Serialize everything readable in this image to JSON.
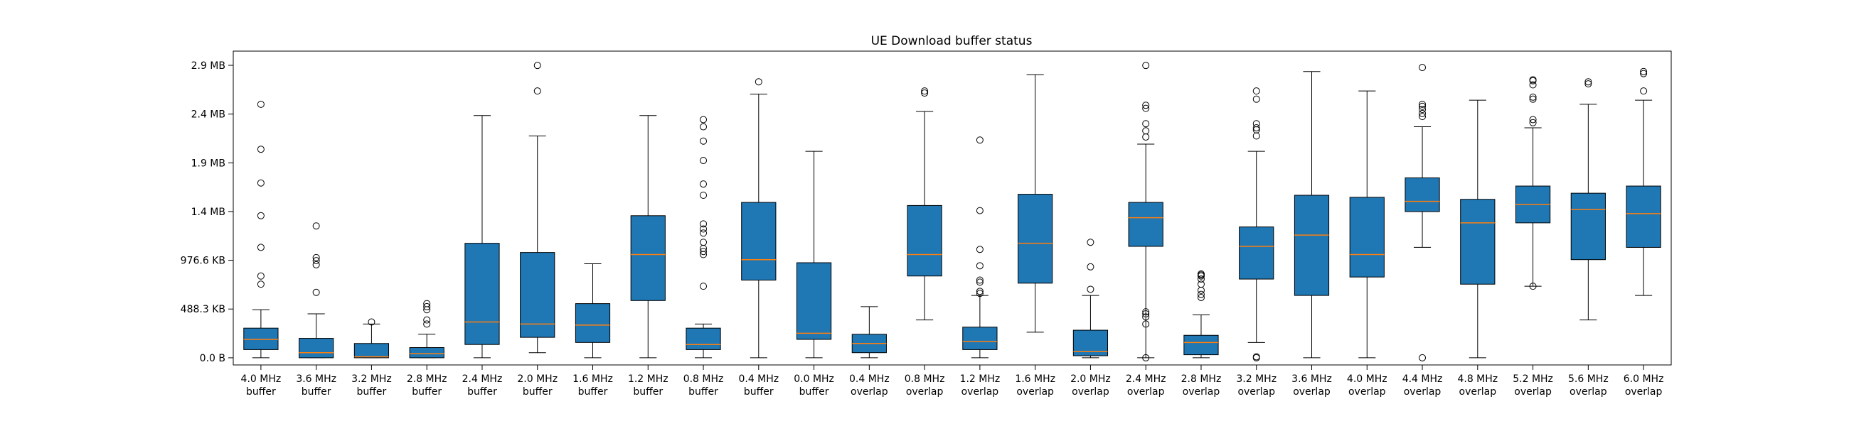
{
  "chart_data": {
    "type": "box",
    "title": "UE Download buffer status",
    "xlabel": "",
    "ylabel": "",
    "y_tick_labels": [
      "0.0 B",
      "488.3 KB",
      "976.6 KB",
      "1.4 MB",
      "1.9 MB",
      "2.4 MB",
      "2.9 MB"
    ],
    "y_tick_values_MB": [
      0.0,
      0.477,
      0.954,
      1.431,
      1.907,
      2.384,
      2.861
    ],
    "ylim_MB": [
      -0.07,
      3.0
    ],
    "y_unit": "MB",
    "grid": false,
    "box_color": "#1f77b4",
    "median_color": "#ff7f0e",
    "categories": [
      [
        "4.0 MHz",
        "buffer"
      ],
      [
        "3.6 MHz",
        "buffer"
      ],
      [
        "3.2 MHz",
        "buffer"
      ],
      [
        "2.8 MHz",
        "buffer"
      ],
      [
        "2.4 MHz",
        "buffer"
      ],
      [
        "2.0 MHz",
        "buffer"
      ],
      [
        "1.6 MHz",
        "buffer"
      ],
      [
        "1.2 MHz",
        "buffer"
      ],
      [
        "0.8 MHz",
        "buffer"
      ],
      [
        "0.4 MHz",
        "buffer"
      ],
      [
        "0.0 MHz",
        "buffer"
      ],
      [
        "0.4 MHz",
        "overlap"
      ],
      [
        "0.8 MHz",
        "overlap"
      ],
      [
        "1.2 MHz",
        "overlap"
      ],
      [
        "1.6 MHz",
        "overlap"
      ],
      [
        "2.0 MHz",
        "overlap"
      ],
      [
        "2.4 MHz",
        "overlap"
      ],
      [
        "2.8 MHz",
        "overlap"
      ],
      [
        "3.2 MHz",
        "overlap"
      ],
      [
        "3.6 MHz",
        "overlap"
      ],
      [
        "4.0 MHz",
        "overlap"
      ],
      [
        "4.4 MHz",
        "overlap"
      ],
      [
        "4.8 MHz",
        "overlap"
      ],
      [
        "5.2 MHz",
        "overlap"
      ],
      [
        "5.6 MHz",
        "overlap"
      ],
      [
        "6.0 MHz",
        "overlap"
      ]
    ],
    "boxes": [
      {
        "whislo": 0.0,
        "q1": 0.08,
        "med": 0.18,
        "q3": 0.29,
        "whishi": 0.47,
        "fliers": [
          2.48,
          2.04,
          1.71,
          1.39,
          1.08,
          0.8,
          0.72
        ]
      },
      {
        "whislo": 0.0,
        "q1": 0.0,
        "med": 0.05,
        "q3": 0.19,
        "whishi": 0.43,
        "fliers": [
          1.29,
          0.98,
          0.95,
          0.91,
          0.64
        ]
      },
      {
        "whislo": 0.0,
        "q1": 0.0,
        "med": 0.01,
        "q3": 0.14,
        "whishi": 0.33,
        "fliers": [
          0.35
        ]
      },
      {
        "whislo": 0.0,
        "q1": 0.0,
        "med": 0.04,
        "q3": 0.1,
        "whishi": 0.23,
        "fliers": [
          0.53,
          0.5,
          0.47,
          0.37,
          0.33
        ]
      },
      {
        "whislo": 0.0,
        "q1": 0.13,
        "med": 0.35,
        "q3": 1.12,
        "whishi": 2.37,
        "fliers": []
      },
      {
        "whislo": 0.05,
        "q1": 0.2,
        "med": 0.33,
        "q3": 1.03,
        "whishi": 2.17,
        "fliers": [
          2.86,
          2.61
        ]
      },
      {
        "whislo": 0.0,
        "q1": 0.15,
        "med": 0.32,
        "q3": 0.53,
        "whishi": 0.92,
        "fliers": []
      },
      {
        "whislo": 0.0,
        "q1": 0.56,
        "med": 1.01,
        "q3": 1.39,
        "whishi": 2.37,
        "fliers": []
      },
      {
        "whislo": 0.0,
        "q1": 0.08,
        "med": 0.13,
        "q3": 0.29,
        "whishi": 0.33,
        "fliers": [
          2.33,
          2.26,
          2.12,
          1.93,
          1.7,
          1.59,
          1.31,
          1.26,
          1.22,
          1.13,
          1.07,
          1.04,
          1.01,
          0.7
        ]
      },
      {
        "whislo": 0.0,
        "q1": 0.76,
        "med": 0.96,
        "q3": 1.52,
        "whishi": 2.58,
        "fliers": [
          2.7
        ]
      },
      {
        "whislo": 0.0,
        "q1": 0.18,
        "med": 0.24,
        "q3": 0.93,
        "whishi": 2.02,
        "fliers": []
      },
      {
        "whislo": 0.0,
        "q1": 0.05,
        "med": 0.14,
        "q3": 0.23,
        "whishi": 0.5,
        "fliers": []
      },
      {
        "whislo": 0.37,
        "q1": 0.8,
        "med": 1.01,
        "q3": 1.49,
        "whishi": 2.41,
        "fliers": [
          2.61,
          2.59
        ]
      },
      {
        "whislo": 0.0,
        "q1": 0.08,
        "med": 0.16,
        "q3": 0.3,
        "whishi": 0.61,
        "fliers": [
          2.13,
          1.44,
          1.06,
          0.9,
          0.76,
          0.74,
          0.65,
          0.63
        ]
      },
      {
        "whislo": 0.25,
        "q1": 0.73,
        "med": 1.12,
        "q3": 1.6,
        "whishi": 2.77,
        "fliers": []
      },
      {
        "whislo": 0.0,
        "q1": 0.02,
        "med": 0.06,
        "q3": 0.27,
        "whishi": 0.61,
        "fliers": [
          1.13,
          0.89,
          0.67
        ]
      },
      {
        "whislo": 0.0,
        "q1": 1.09,
        "med": 1.37,
        "q3": 1.52,
        "whishi": 2.09,
        "fliers": [
          2.86,
          2.47,
          2.44,
          2.29,
          2.22,
          2.16,
          0.45,
          0.43,
          0.4,
          0.33,
          0.0
        ]
      },
      {
        "whislo": 0.0,
        "q1": 0.03,
        "med": 0.15,
        "q3": 0.22,
        "whishi": 0.42,
        "fliers": [
          0.82,
          0.81,
          0.8,
          0.77,
          0.72,
          0.66,
          0.62,
          0.59
        ]
      },
      {
        "whislo": 0.15,
        "q1": 0.77,
        "med": 1.09,
        "q3": 1.28,
        "whishi": 2.02,
        "fliers": [
          2.61,
          2.53,
          2.29,
          2.25,
          2.23,
          2.17,
          0.01,
          0.0
        ]
      },
      {
        "whislo": 0.0,
        "q1": 0.61,
        "med": 1.2,
        "q3": 1.59,
        "whishi": 2.8,
        "fliers": []
      },
      {
        "whislo": 0.0,
        "q1": 0.79,
        "med": 1.01,
        "q3": 1.57,
        "whishi": 2.61,
        "fliers": []
      },
      {
        "whislo": 1.08,
        "q1": 1.43,
        "med": 1.53,
        "q3": 1.76,
        "whishi": 2.26,
        "fliers": [
          2.84,
          2.48,
          2.46,
          2.43,
          2.39,
          2.36,
          0.0
        ]
      },
      {
        "whislo": 0.0,
        "q1": 0.72,
        "med": 1.32,
        "q3": 1.55,
        "whishi": 2.52,
        "fliers": []
      },
      {
        "whislo": 0.7,
        "q1": 1.32,
        "med": 1.5,
        "q3": 1.68,
        "whishi": 2.25,
        "fliers": [
          2.72,
          2.71,
          2.67,
          2.55,
          2.53,
          2.33,
          2.3,
          0.7
        ]
      },
      {
        "whislo": 0.37,
        "q1": 0.96,
        "med": 1.45,
        "q3": 1.61,
        "whishi": 2.48,
        "fliers": [
          2.7,
          2.68
        ]
      },
      {
        "whislo": 0.61,
        "q1": 1.08,
        "med": 1.41,
        "q3": 1.68,
        "whishi": 2.52,
        "fliers": [
          2.8,
          2.78,
          2.61
        ]
      }
    ]
  }
}
